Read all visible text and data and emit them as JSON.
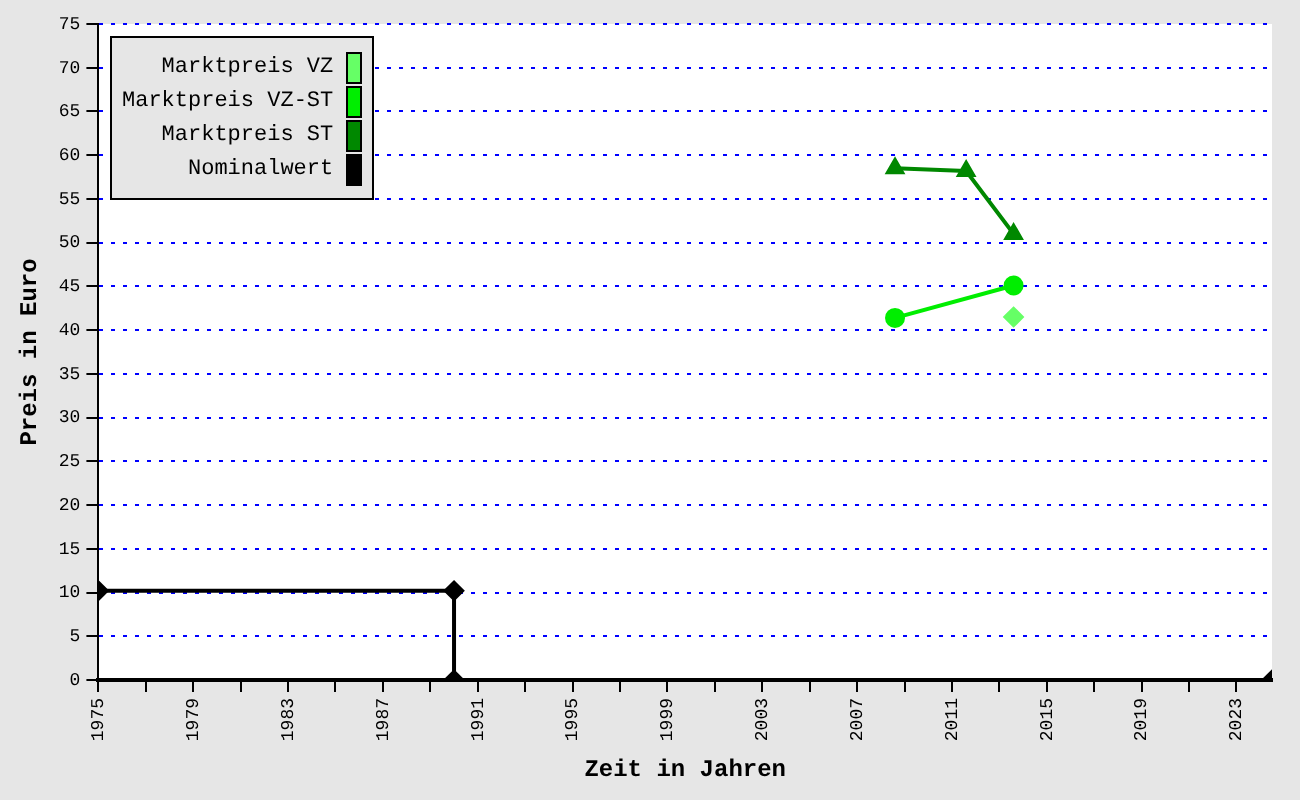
{
  "chart_data": {
    "type": "line",
    "xlabel": "Zeit in Jahren",
    "ylabel": "Preis in Euro",
    "xlim": [
      1975,
      2024.5
    ],
    "xticks": [
      1975,
      {
        "value": 1977,
        "label": null
      },
      1979,
      {
        "value": 1981,
        "label": null
      },
      1983,
      {
        "value": 1985,
        "label": null
      },
      1987,
      {
        "value": 1989,
        "label": null
      },
      1991,
      {
        "value": 1993,
        "label": null
      },
      1995,
      {
        "value": 1997,
        "label": null
      },
      1999,
      {
        "value": 2001,
        "label": null
      },
      2003,
      {
        "value": 2005,
        "label": null
      },
      2007,
      {
        "value": 2009,
        "label": null
      },
      2011,
      {
        "value": 2013,
        "label": null
      },
      2015,
      {
        "value": 2017,
        "label": null
      },
      2019,
      {
        "value": 2021,
        "label": null
      },
      2023
    ],
    "ylim": [
      0,
      75
    ],
    "yticks": [
      0,
      5,
      10,
      15,
      20,
      25,
      30,
      35,
      40,
      45,
      50,
      55,
      60,
      65,
      70,
      75
    ],
    "grid": "y",
    "legend": "top left",
    "series": [
      {
        "name": "Marktpreis VZ",
        "color": "#66ff66",
        "marker": "diamond",
        "x": [
          2013.6
        ],
        "values": [
          41.5
        ]
      },
      {
        "name": "Marktpreis VZ-ST",
        "color": "#00ee00",
        "marker": "circle",
        "x": [
          2008.6,
          2013.6
        ],
        "values": [
          41.4,
          45.1
        ]
      },
      {
        "name": "Marktpreis ST",
        "color": "#008800",
        "marker": "triangle",
        "x": [
          2008.6,
          2011.6,
          2013.6
        ],
        "values": [
          58.5,
          58.2,
          51.0
        ]
      },
      {
        "name": "Nominalwert",
        "color": "#000000",
        "marker": "diamond",
        "x": [
          1975,
          1990,
          1990,
          2024.5
        ],
        "values": [
          10.2,
          10.2,
          0,
          0
        ]
      }
    ]
  }
}
